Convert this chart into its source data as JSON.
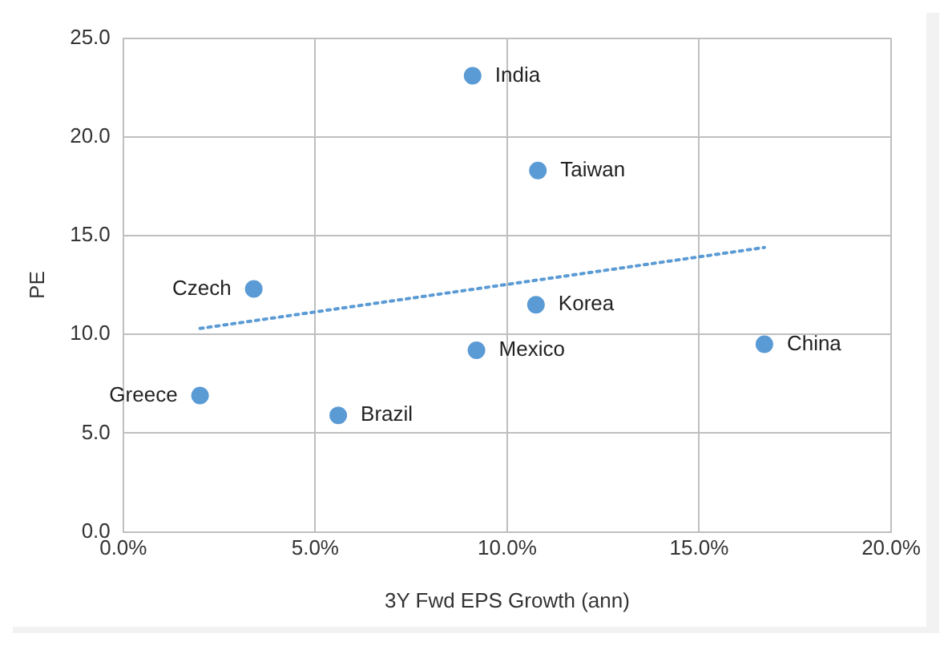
{
  "chart_data": {
    "type": "scatter",
    "xlabel": "3Y Fwd EPS Growth (ann)",
    "ylabel": "PE",
    "series": [
      {
        "color": "#5b9bd5",
        "marker": "circle",
        "x": [
          9.1,
          10.8,
          3.4,
          10.75,
          9.2,
          16.7,
          2.0,
          5.6
        ],
        "values": [
          23.1,
          18.3,
          12.3,
          11.5,
          9.2,
          9.5,
          6.9,
          5.9
        ]
      },
      {
        "type": "line",
        "color": "#5b9bd5",
        "marker": "none",
        "line_style": "dotted",
        "x": [
          2.0,
          16.7
        ],
        "values": [
          10.3,
          14.4
        ]
      }
    ],
    "annotations": [
      {
        "text": "India",
        "x": 9.1,
        "y": 23.1
      },
      {
        "text": "Taiwan",
        "x": 10.8,
        "y": 18.3
      },
      {
        "text": "Czech",
        "x": 3.4,
        "y": 12.3
      },
      {
        "text": "Korea",
        "x": 10.75,
        "y": 11.5
      },
      {
        "text": "Mexico",
        "x": 9.2,
        "y": 9.2
      },
      {
        "text": "China",
        "x": 16.7,
        "y": 9.5
      },
      {
        "text": "Greece",
        "x": 2.0,
        "y": 6.9
      },
      {
        "text": "Brazil",
        "x": 5.6,
        "y": 5.9
      }
    ],
    "xlim": [
      0,
      20
    ],
    "xticks": [
      {
        "value": 0,
        "label": "0.0%"
      },
      {
        "value": 5,
        "label": "5.0%"
      },
      {
        "value": 10,
        "label": "10.0%"
      },
      {
        "value": 15,
        "label": "15.0%"
      },
      {
        "value": 20,
        "label": "20.0%"
      }
    ],
    "ylim": [
      0,
      25
    ],
    "yticks": [
      {
        "value": 0,
        "label": "0.0"
      },
      {
        "value": 5,
        "label": "5.0"
      },
      {
        "value": 10,
        "label": "10.0"
      },
      {
        "value": 15,
        "label": "15.0"
      },
      {
        "value": 20,
        "label": "20.0"
      },
      {
        "value": 25,
        "label": "25.0"
      }
    ],
    "grid": true,
    "legend": false
  }
}
